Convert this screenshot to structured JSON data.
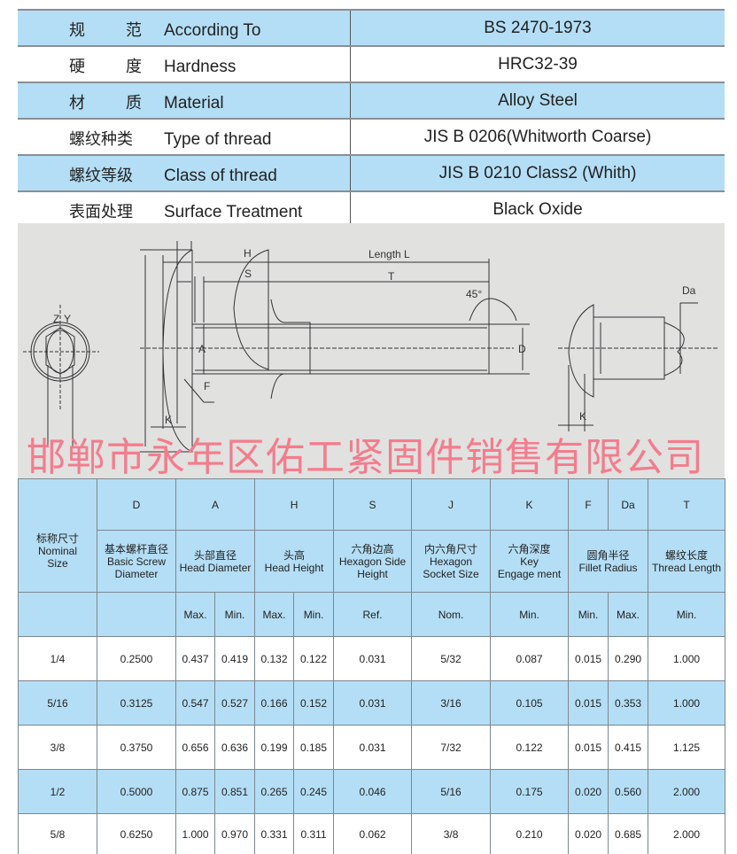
{
  "specs": [
    {
      "cn": [
        "规",
        "范"
      ],
      "en": "According To",
      "value": "BS 2470-1973"
    },
    {
      "cn": [
        "硬",
        "度"
      ],
      "en": "Hardness",
      "value": "HRC32-39"
    },
    {
      "cn": [
        "材",
        "质"
      ],
      "en": "Material",
      "value": "Alloy Steel"
    },
    {
      "cn": [
        "螺纹种类"
      ],
      "en": "Type of thread",
      "value": "JIS B 0206(Whitworth Coarse)"
    },
    {
      "cn": [
        "螺纹等级"
      ],
      "en": "Class of thread",
      "value": "JIS B 0210 Class2 (Whith)"
    },
    {
      "cn": [
        "表面处理"
      ],
      "en": "Surface Treatment",
      "value": "Black Oxide"
    }
  ],
  "diagram": {
    "labels": {
      "H": "H",
      "S": "S",
      "length": "Length L",
      "T": "T",
      "angle": "45°",
      "A": "A",
      "D": "D",
      "F": "F",
      "K": "K",
      "Da": "Da",
      "Z": "Z",
      "Y": "Y"
    }
  },
  "watermark": "邯郸市永年区佑工紧固件销售有限公司",
  "dimensions": {
    "nominal": {
      "cn": "标称尺寸",
      "en1": "Nominal",
      "en2": "Size"
    },
    "columns": [
      {
        "sym": "D",
        "cn": "基本螺杆直径",
        "en": [
          "Basic Screw",
          "Diameter"
        ],
        "sub": [
          ""
        ]
      },
      {
        "sym": "A",
        "cn": "头部直径",
        "en": [
          "Head Diameter"
        ],
        "sub": [
          "Max.",
          "Min."
        ]
      },
      {
        "sym": "H",
        "cn": "头高",
        "en": [
          "Head Height"
        ],
        "sub": [
          "Max.",
          "Min."
        ]
      },
      {
        "sym": "S",
        "cn": "六角边高",
        "en": [
          "Hexagon Side",
          "Height"
        ],
        "sub": [
          "Ref."
        ]
      },
      {
        "sym": "J",
        "cn": "内六角尺寸",
        "en": [
          "Hexagon",
          "Socket Size"
        ],
        "sub": [
          "Nom."
        ]
      },
      {
        "sym": "K",
        "cn": "六角深度",
        "en": [
          "Key",
          "Engage ment"
        ],
        "sub": [
          "Min."
        ]
      },
      {
        "sym": [
          "F",
          "Da"
        ],
        "cn": "圆角半径",
        "en": [
          "Fillet Radius"
        ],
        "sub": [
          "Min.",
          "Max."
        ]
      },
      {
        "sym": "T",
        "cn": "螺纹长度",
        "en": [
          "Thread Length"
        ],
        "sub": [
          "Min."
        ]
      }
    ],
    "rows": [
      [
        "1/4",
        "0.2500",
        "0.437",
        "0.419",
        "0.132",
        "0.122",
        "0.031",
        "5/32",
        "0.087",
        "0.015",
        "0.290",
        "1.000"
      ],
      [
        "5/16",
        "0.3125",
        "0.547",
        "0.527",
        "0.166",
        "0.152",
        "0.031",
        "3/16",
        "0.105",
        "0.015",
        "0.353",
        "1.000"
      ],
      [
        "3/8",
        "0.3750",
        "0.656",
        "0.636",
        "0.199",
        "0.185",
        "0.031",
        "7/32",
        "0.122",
        "0.015",
        "0.415",
        "1.125"
      ],
      [
        "1/2",
        "0.5000",
        "0.875",
        "0.851",
        "0.265",
        "0.245",
        "0.046",
        "5/16",
        "0.175",
        "0.020",
        "0.560",
        "2.000"
      ],
      [
        "5/8",
        "0.6250",
        "1.000",
        "0.970",
        "0.331",
        "0.311",
        "0.062",
        "3/8",
        "0.210",
        "0.020",
        "0.685",
        "2.000"
      ]
    ]
  },
  "colors": {
    "header_blue": "#b4def5",
    "watermark": "#f47c8c",
    "diagram_bg": "#e1e1e0"
  }
}
